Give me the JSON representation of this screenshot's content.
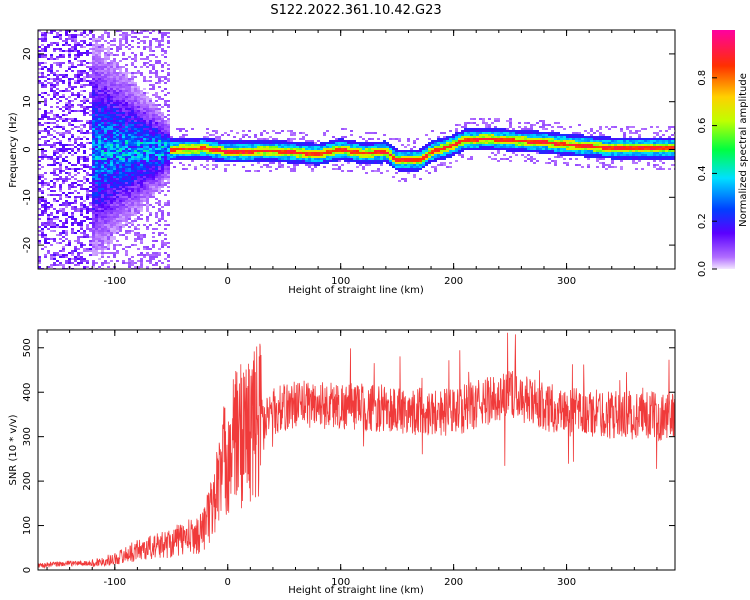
{
  "title": "S122.2022.361.10.42.G23",
  "chart_data": [
    {
      "type": "heatmap",
      "xlabel": "Height of straight line (km)",
      "ylabel": "Frequency (Hz)",
      "xlim": [
        -168,
        396
      ],
      "ylim": [
        -25,
        25
      ],
      "xticks": [
        -100,
        0,
        100,
        200,
        300
      ],
      "yticks": [
        -20,
        -10,
        0,
        10,
        20
      ],
      "colorbar": {
        "label": "Normalized spectral amplitude",
        "range": [
          0,
          1
        ],
        "ticks": [
          "0.0",
          "0.2",
          "0.4",
          "0.6",
          "0.8"
        ],
        "colormap": "rainbow (violet → blue → cyan → green → yellow → red → magenta)"
      },
      "ridge": {
        "description": "peak frequency vs height (estimated)",
        "x": [
          -50,
          -20,
          0,
          40,
          80,
          100,
          120,
          140,
          150,
          170,
          180,
          195,
          210,
          230,
          280,
          300,
          340,
          396
        ],
        "y": [
          0,
          0.2,
          -0.5,
          -0.3,
          -1,
          0,
          -0.8,
          -0.5,
          -2.2,
          -2.3,
          -0.5,
          0.5,
          2,
          2.2,
          1.5,
          1,
          0.3,
          0.3
        ]
      }
    },
    {
      "type": "line",
      "xlabel": "Height of straight line (km)",
      "ylabel": "SNR (10 * v/v)",
      "xlim": [
        -168,
        396
      ],
      "ylim": [
        0,
        540
      ],
      "xticks": [
        -100,
        0,
        100,
        200,
        300
      ],
      "yticks": [
        0,
        100,
        200,
        300,
        400,
        500
      ],
      "color": "#f03a3a",
      "series": [
        {
          "description": "approximate running mean of SNR (estimated)",
          "x": [
            -168,
            -140,
            -120,
            -100,
            -80,
            -60,
            -40,
            -25,
            -15,
            -5,
            0,
            10,
            20,
            30,
            40,
            60,
            100,
            150,
            200,
            230,
            250,
            270,
            300,
            340,
            396
          ],
          "y": [
            10,
            15,
            15,
            25,
            45,
            55,
            70,
            80,
            130,
            230,
            265,
            305,
            320,
            345,
            355,
            375,
            370,
            360,
            355,
            380,
            395,
            375,
            355,
            350,
            345
          ]
        }
      ]
    }
  ]
}
